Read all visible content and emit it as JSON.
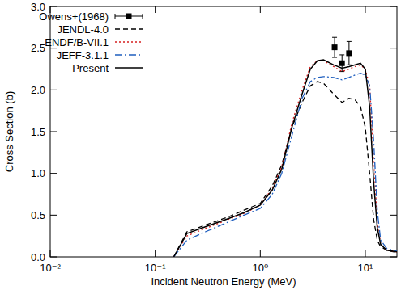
{
  "chart_data": {
    "type": "line",
    "x_label": "Incident Neutron Energy (MeV)",
    "y_label": "Cross Section (b)",
    "log": "x",
    "grid": false,
    "legend": "upper left",
    "xlim": [
      0.01,
      20
    ],
    "xticks": [
      {
        "value": 0.01,
        "label": "10⁻²"
      },
      {
        "value": 0.1,
        "label": "10⁻¹"
      },
      {
        "value": 1,
        "label": "10⁰"
      },
      {
        "value": 10,
        "label": "10¹"
      }
    ],
    "ylim": [
      0,
      3
    ],
    "yticks": [
      {
        "value": 0,
        "label": "0.0"
      },
      0.5,
      {
        "value": 1,
        "label": "1.0"
      },
      1.5,
      {
        "value": 2,
        "label": "2.0"
      },
      2.5,
      {
        "value": 3,
        "label": "3.0"
      }
    ],
    "series": [
      {
        "name": "Owens+(1968)",
        "type": "scatter",
        "marker": "square",
        "color": "#000000",
        "x": [
          5.1,
          6.0,
          7.0
        ],
        "values": [
          2.51,
          2.32,
          2.44
        ],
        "errors": [
          0.12,
          0.1,
          0.14
        ]
      },
      {
        "name": "JENDL-4.0",
        "type": "line",
        "line_style": "dashed",
        "color": "#000000",
        "x": [
          0.15,
          0.2,
          0.3,
          0.5,
          0.7,
          1.0,
          1.3,
          1.6,
          2.0,
          2.5,
          3.0,
          3.5,
          4.0,
          5.0,
          6.0,
          7.0,
          8.0,
          9.0,
          10.0,
          11.0,
          12.0,
          13.0,
          14.0,
          16.0,
          20.0
        ],
        "values": [
          0,
          0.3,
          0.38,
          0.48,
          0.56,
          0.64,
          0.85,
          1.1,
          1.55,
          1.85,
          2.05,
          2.1,
          2.08,
          1.95,
          1.85,
          1.9,
          1.88,
          1.8,
          1.55,
          1.0,
          0.45,
          0.2,
          0.12,
          0.08,
          0.05
        ]
      },
      {
        "name": "ENDF/B-VII.1",
        "type": "line",
        "line_style": "dotted",
        "color": "#d62020",
        "x": [
          0.15,
          0.2,
          0.3,
          0.5,
          0.7,
          1.0,
          1.3,
          1.6,
          2.0,
          2.5,
          3.0,
          3.5,
          4.0,
          5.0,
          6.0,
          7.0,
          8.0,
          9.0,
          10.0,
          11.0,
          12.0,
          13.0,
          14.0,
          16.0,
          20.0
        ],
        "values": [
          0,
          0.25,
          0.34,
          0.45,
          0.52,
          0.62,
          0.82,
          1.08,
          1.6,
          2.0,
          2.28,
          2.35,
          2.35,
          2.28,
          2.22,
          2.25,
          2.28,
          2.3,
          2.25,
          2.05,
          1.2,
          0.4,
          0.15,
          0.08,
          0.06
        ]
      },
      {
        "name": "JEFF-3.1.1",
        "type": "line",
        "line_style": "dashdot",
        "color": "#1f5fbf",
        "x": [
          0.15,
          0.2,
          0.3,
          0.5,
          0.7,
          1.0,
          1.3,
          1.6,
          2.0,
          2.5,
          3.0,
          3.5,
          4.0,
          5.0,
          6.0,
          7.0,
          8.0,
          9.0,
          10.0,
          11.0,
          12.0,
          13.0,
          14.0,
          16.0,
          20.0
        ],
        "values": [
          0,
          0.2,
          0.3,
          0.42,
          0.5,
          0.58,
          0.75,
          1.0,
          1.45,
          1.9,
          2.1,
          2.15,
          2.16,
          2.15,
          2.12,
          2.15,
          2.18,
          2.2,
          2.18,
          2.05,
          1.4,
          0.55,
          0.2,
          0.1,
          0.07
        ]
      },
      {
        "name": "Present",
        "type": "line",
        "line_style": "solid",
        "color": "#000000",
        "x": [
          0.15,
          0.2,
          0.3,
          0.5,
          0.7,
          1.0,
          1.3,
          1.6,
          2.0,
          2.5,
          3.0,
          3.5,
          4.0,
          5.0,
          6.0,
          7.0,
          8.0,
          9.0,
          10.0,
          11.0,
          12.0,
          13.0,
          14.0,
          16.0,
          20.0
        ],
        "values": [
          0,
          0.28,
          0.36,
          0.46,
          0.53,
          0.62,
          0.8,
          1.05,
          1.55,
          1.95,
          2.25,
          2.35,
          2.36,
          2.3,
          2.26,
          2.28,
          2.3,
          2.32,
          2.25,
          1.8,
          0.9,
          0.35,
          0.15,
          0.08,
          0.06
        ]
      }
    ]
  }
}
